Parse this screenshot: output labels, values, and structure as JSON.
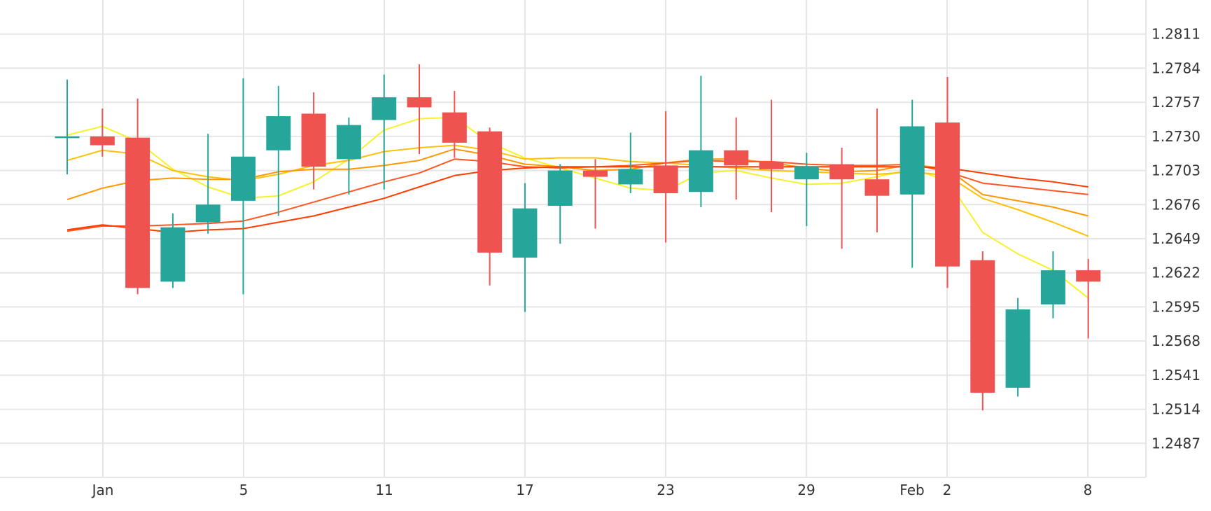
{
  "chart_data": {
    "type": "candlestick",
    "x_tick_labels": [
      "Jan",
      "5",
      "11",
      "17",
      "23",
      "29",
      "Feb",
      "2",
      "8"
    ],
    "y_tick_labels": [
      "1.2811",
      "1.2784",
      "1.2757",
      "1.2730",
      "1.2703",
      "1.2676",
      "1.2649",
      "1.2622",
      "1.2595",
      "1.2568",
      "1.2541",
      "1.2514",
      "1.2487"
    ],
    "ylim": [
      1.246,
      1.2838
    ],
    "grid": true,
    "colors": {
      "up": "#26a69a",
      "down": "#ef5350"
    },
    "candles": [
      {
        "x": "Dec 29",
        "open": 1.273,
        "high": 1.2775,
        "low": 1.27,
        "close": 1.273
      },
      {
        "x": "Dec 30",
        "open": 1.273,
        "high": 1.2752,
        "low": 1.2714,
        "close": 1.2723
      },
      {
        "x": "Jan 2",
        "open": 1.2729,
        "high": 1.276,
        "low": 1.2605,
        "close": 1.261
      },
      {
        "x": "Jan 3",
        "open": 1.2615,
        "high": 1.2669,
        "low": 1.261,
        "close": 1.2658
      },
      {
        "x": "Jan 4",
        "open": 1.2662,
        "high": 1.2732,
        "low": 1.2653,
        "close": 1.2676
      },
      {
        "x": "Jan 5",
        "open": 1.2679,
        "high": 1.2776,
        "low": 1.2605,
        "close": 1.2714
      },
      {
        "x": "Jan 8",
        "open": 1.2719,
        "high": 1.277,
        "low": 1.2667,
        "close": 1.2746
      },
      {
        "x": "Jan 9",
        "open": 1.2748,
        "high": 1.2765,
        "low": 1.2688,
        "close": 1.2706
      },
      {
        "x": "Jan 10",
        "open": 1.2712,
        "high": 1.2745,
        "low": 1.2684,
        "close": 1.2739
      },
      {
        "x": "Jan 11",
        "open": 1.2743,
        "high": 1.2779,
        "low": 1.2688,
        "close": 1.2761
      },
      {
        "x": "Jan 12",
        "open": 1.2761,
        "high": 1.2787,
        "low": 1.2716,
        "close": 1.2753
      },
      {
        "x": "Jan 15",
        "open": 1.2749,
        "high": 1.2766,
        "low": 1.2713,
        "close": 1.2725
      },
      {
        "x": "Jan 16",
        "open": 1.2734,
        "high": 1.2737,
        "low": 1.2612,
        "close": 1.2638
      },
      {
        "x": "Jan 17",
        "open": 1.2634,
        "high": 1.2693,
        "low": 1.2591,
        "close": 1.2673
      },
      {
        "x": "Jan 18",
        "open": 1.2675,
        "high": 1.2708,
        "low": 1.2645,
        "close": 1.2703
      },
      {
        "x": "Jan 19",
        "open": 1.2703,
        "high": 1.2712,
        "low": 1.2657,
        "close": 1.2698
      },
      {
        "x": "Jan 22",
        "open": 1.2692,
        "high": 1.2733,
        "low": 1.2685,
        "close": 1.2704
      },
      {
        "x": "Jan 23",
        "open": 1.2707,
        "high": 1.275,
        "low": 1.2646,
        "close": 1.2685
      },
      {
        "x": "Jan 24",
        "open": 1.2686,
        "high": 1.2778,
        "low": 1.2674,
        "close": 1.2719
      },
      {
        "x": "Jan 25",
        "open": 1.2719,
        "high": 1.2745,
        "low": 1.268,
        "close": 1.2707
      },
      {
        "x": "Jan 26",
        "open": 1.271,
        "high": 1.2759,
        "low": 1.267,
        "close": 1.2704
      },
      {
        "x": "Jan 29",
        "open": 1.2696,
        "high": 1.2717,
        "low": 1.2659,
        "close": 1.2706
      },
      {
        "x": "Jan 30",
        "open": 1.2708,
        "high": 1.2721,
        "low": 1.2641,
        "close": 1.2696
      },
      {
        "x": "Jan 31",
        "open": 1.2696,
        "high": 1.2752,
        "low": 1.2654,
        "close": 1.2683
      },
      {
        "x": "Feb 1",
        "open": 1.2684,
        "high": 1.2759,
        "low": 1.2626,
        "close": 1.2738
      },
      {
        "x": "Feb 2",
        "open": 1.2741,
        "high": 1.2777,
        "low": 1.261,
        "close": 1.2627
      },
      {
        "x": "Feb 5",
        "open": 1.2632,
        "high": 1.2639,
        "low": 1.2513,
        "close": 1.2527
      },
      {
        "x": "Feb 6",
        "open": 1.2531,
        "high": 1.2602,
        "low": 1.2524,
        "close": 1.2593
      },
      {
        "x": "Feb 7",
        "open": 1.2597,
        "high": 1.2639,
        "low": 1.2586,
        "close": 1.2624
      },
      {
        "x": "Feb 8",
        "open": 1.2624,
        "high": 1.2633,
        "low": 1.257,
        "close": 1.2615
      }
    ],
    "moving_averages": [
      {
        "color": "#f7f12b",
        "values": [
          1.2731,
          1.2738,
          1.2726,
          1.2704,
          1.269,
          1.2681,
          1.2683,
          1.2694,
          1.2712,
          1.2735,
          1.2744,
          1.2745,
          1.2725,
          1.2713,
          1.2705,
          1.2697,
          1.2689,
          1.2687,
          1.2701,
          1.2703,
          1.2697,
          1.2692,
          1.2693,
          1.2698,
          1.2704,
          1.2695,
          1.2654,
          1.2637,
          1.2624,
          1.2602
        ]
      },
      {
        "color": "#ffc107",
        "values": [
          1.2711,
          1.2719,
          1.2716,
          1.2703,
          1.2698,
          1.2695,
          1.27,
          1.2707,
          1.2711,
          1.2718,
          1.2721,
          1.2723,
          1.2719,
          1.2712,
          1.2713,
          1.2713,
          1.271,
          1.2709,
          1.2707,
          1.2705,
          1.2703,
          1.2702,
          1.2701,
          1.27,
          1.2702,
          1.2699,
          1.2681,
          1.2672,
          1.2662,
          1.2651
        ]
      },
      {
        "color": "#ff9800",
        "values": [
          1.268,
          1.2689,
          1.2695,
          1.2697,
          1.2696,
          1.2696,
          1.2702,
          1.2704,
          1.2704,
          1.2707,
          1.2711,
          1.272,
          1.2715,
          1.2708,
          1.2706,
          1.2703,
          1.2704,
          1.2709,
          1.2712,
          1.2712,
          1.2709,
          1.2705,
          1.2702,
          1.2703,
          1.2708,
          1.2704,
          1.2684,
          1.2679,
          1.2674,
          1.2667
        ]
      },
      {
        "color": "#ff5722",
        "values": [
          1.2655,
          1.2659,
          1.2659,
          1.266,
          1.2661,
          1.2663,
          1.267,
          1.2678,
          1.2686,
          1.2694,
          1.2701,
          1.2712,
          1.271,
          1.2706,
          1.2705,
          1.2706,
          1.2707,
          1.2709,
          1.2711,
          1.271,
          1.271,
          1.2708,
          1.2707,
          1.2707,
          1.2708,
          1.2702,
          1.2693,
          1.269,
          1.2687,
          1.2684
        ]
      },
      {
        "color": "#ff3d00",
        "values": [
          1.2656,
          1.266,
          1.2657,
          1.2654,
          1.2656,
          1.2657,
          1.2662,
          1.2667,
          1.2674,
          1.2681,
          1.269,
          1.2699,
          1.2703,
          1.2705,
          1.2706,
          1.2706,
          1.2706,
          1.2706,
          1.2706,
          1.2706,
          1.2706,
          1.2706,
          1.2706,
          1.2706,
          1.2706,
          1.2705,
          1.2701,
          1.2697,
          1.2694,
          1.269
        ]
      }
    ]
  }
}
